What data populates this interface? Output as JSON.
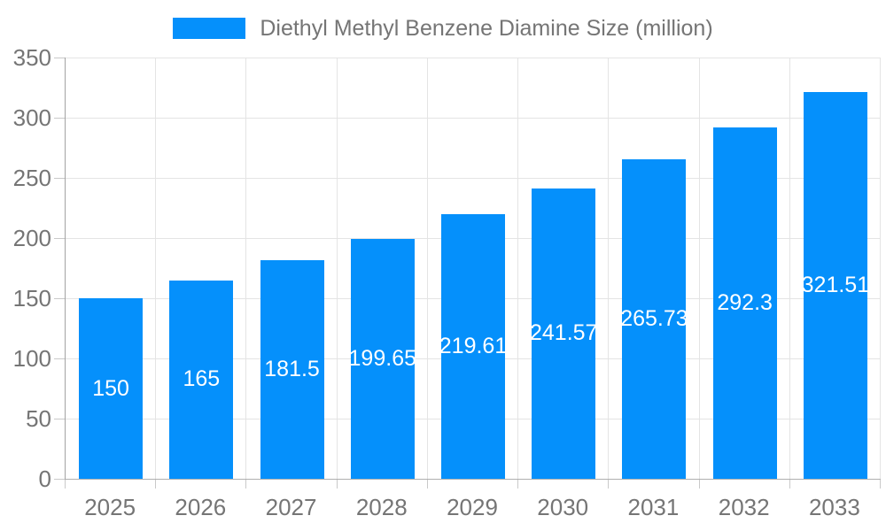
{
  "legend": {
    "label": "Diethyl Methyl Benzene Diamine Size (million)",
    "swatch_color": "#0590FB"
  },
  "chart_data": {
    "type": "bar",
    "title": "Diethyl Methyl Benzene Diamine Size (million)",
    "categories": [
      "2025",
      "2026",
      "2027",
      "2028",
      "2029",
      "2030",
      "2031",
      "2032",
      "2033"
    ],
    "series": [
      {
        "name": "Diethyl Methyl Benzene Diamine Size (million)",
        "values": [
          150,
          165,
          181.5,
          199.65,
          219.61,
          241.57,
          265.73,
          292.3,
          321.51
        ]
      }
    ],
    "values": [
      150,
      165,
      181.5,
      199.65,
      219.61,
      241.57,
      265.73,
      292.3,
      321.51
    ],
    "data_labels": [
      "150",
      "165",
      "181.5",
      "199.65",
      "219.61",
      "241.57",
      "265.73",
      "292.3",
      "321.51"
    ],
    "xlabel": "",
    "ylabel": "",
    "ylim": [
      0,
      350
    ],
    "ytick_step": 50,
    "yticks": [
      0,
      50,
      100,
      150,
      200,
      250,
      300,
      350
    ],
    "grid": true,
    "legend_position": "top",
    "bar_color": "#0590FB",
    "data_label_color": "#ffffff",
    "axis_label_color": "#757575"
  },
  "colors": {
    "background": "#ffffff",
    "gridline": "#e4e4e4",
    "y_axis_line": "#a2a2a2",
    "x_axis_line": "#b0b0b0",
    "tick": "#c9c9c9"
  }
}
